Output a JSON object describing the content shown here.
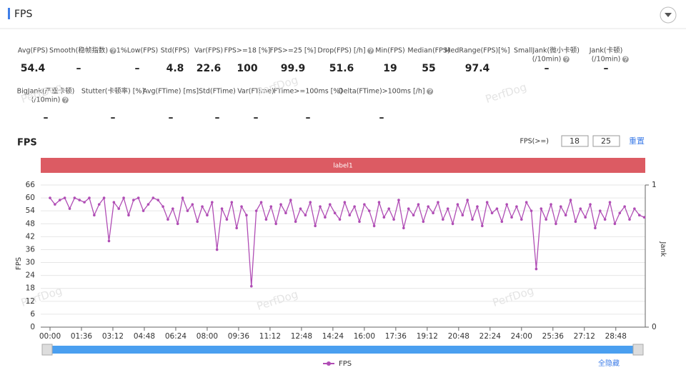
{
  "header": {
    "title": "FPS"
  },
  "metrics": [
    {
      "label": [
        "Avg(FPS)"
      ],
      "value": 54.4,
      "help": false
    },
    {
      "label": [
        "Smooth(稳帧指数)"
      ],
      "value": "–",
      "help": true
    },
    {
      "label": [
        "1%Low(FPS)"
      ],
      "value": "–",
      "help": false
    },
    {
      "label": [
        "Std(FPS)"
      ],
      "value": 4.8,
      "help": false
    },
    {
      "label": [
        "Var(FPS)"
      ],
      "value": 22.6,
      "help": false
    },
    {
      "label": [
        "FPS>=18 [%]"
      ],
      "value": 100,
      "help": false
    },
    {
      "label": [
        "FPS>=25 [%]"
      ],
      "value": 99.9,
      "help": false
    },
    {
      "label": [
        "Drop(FPS) [/h]"
      ],
      "value": 51.6,
      "help": true
    },
    {
      "label": [
        "Min(FPS)"
      ],
      "value": 19,
      "help": false
    },
    {
      "label": [
        "Median(FPS)"
      ],
      "value": 55,
      "help": false
    },
    {
      "label": [
        "MedRange(FPS)[%]"
      ],
      "value": 97.4,
      "help": false
    },
    {
      "label": [
        "SmallJank(微小卡顿)",
        "(/10min)"
      ],
      "value": "–",
      "help": true
    },
    {
      "label": [
        "Jank(卡顿)",
        "(/10min)"
      ],
      "value": "–",
      "help": true
    }
  ],
  "metrics_row2": [
    {
      "label": [
        "BigJank(严重卡顿)",
        "(/10min)"
      ],
      "value": "–",
      "help": true
    },
    {
      "label": [
        "Stutter(卡顿率) [%]"
      ],
      "value": "–",
      "help": false
    },
    {
      "label": [
        "Avg(FTime) [ms]"
      ],
      "value": "–",
      "help": false
    },
    {
      "label": [
        "Std(FTime)"
      ],
      "value": "–",
      "help": false
    },
    {
      "label": [
        "Var(FTime)"
      ],
      "value": "–",
      "help": false
    },
    {
      "label": [
        "FTime>=100ms [%]"
      ],
      "value": "–",
      "help": false
    },
    {
      "label": [
        "Delta(FTime)>100ms [/h]"
      ],
      "value": "–",
      "help": true
    }
  ],
  "watermark": "PerfDog",
  "chart_data": {
    "type": "line",
    "title": "FPS",
    "filter": {
      "label": "FPS(>=)",
      "values": [
        18,
        25
      ],
      "reset": "重置"
    },
    "band_label": "label1",
    "band_color": "#dc5b63",
    "x": [
      0,
      0.25,
      0.5,
      0.75,
      1,
      1.25,
      1.5,
      1.75,
      2,
      2.25,
      2.5,
      2.75,
      3,
      3.25,
      3.5,
      3.75,
      4,
      4.25,
      4.5,
      4.75,
      5,
      5.25,
      5.5,
      5.75,
      6,
      6.25,
      6.5,
      6.75,
      7,
      7.25,
      7.5,
      7.75,
      8,
      8.25,
      8.5,
      8.75,
      9,
      9.25,
      9.5,
      9.75,
      10,
      10.25,
      10.5,
      10.75,
      11,
      11.25,
      11.5,
      11.75,
      12,
      12.25,
      12.5,
      12.75,
      13,
      13.25,
      13.5,
      13.75,
      14,
      14.25,
      14.5,
      14.75,
      15,
      15.25,
      15.5,
      15.75,
      16,
      16.25,
      16.5,
      16.75,
      17,
      17.25,
      17.5,
      17.75,
      18,
      18.25,
      18.5,
      18.75,
      19,
      19.25,
      19.5,
      19.75,
      20,
      20.25,
      20.5,
      20.75,
      21,
      21.25,
      21.5,
      21.75,
      22,
      22.25,
      22.5,
      22.75,
      23,
      23.25,
      23.5,
      23.75,
      24,
      24.25,
      24.5,
      24.75,
      25,
      25.25,
      25.5,
      25.75,
      26,
      26.25,
      26.5,
      26.75,
      27,
      27.25,
      27.5,
      27.75,
      28,
      28.25,
      28.5,
      28.75,
      29,
      29.25,
      29.5,
      29.75,
      30,
      30.25
    ],
    "series": [
      {
        "name": "FPS",
        "color": "#b04db5",
        "values": [
          60,
          57,
          59,
          60,
          55,
          60,
          59,
          58,
          60,
          52,
          57,
          60,
          40,
          58,
          55,
          60,
          52,
          59,
          60,
          54,
          57,
          60,
          59,
          56,
          50,
          55,
          48,
          60,
          54,
          57,
          49,
          56,
          52,
          58,
          36,
          55,
          50,
          58,
          46,
          56,
          52,
          19,
          54,
          58,
          50,
          56,
          48,
          57,
          53,
          59,
          49,
          55,
          52,
          58,
          47,
          56,
          51,
          57,
          53,
          50,
          58,
          52,
          56,
          49,
          57,
          54,
          47,
          58,
          51,
          55,
          50,
          59,
          46,
          55,
          52,
          57,
          49,
          56,
          53,
          58,
          50,
          55,
          48,
          57,
          52,
          59,
          50,
          56,
          47,
          58,
          53,
          55,
          49,
          57,
          51,
          56,
          50,
          58,
          54,
          27,
          55,
          50,
          57,
          48,
          56,
          52,
          59,
          49,
          55,
          51,
          57,
          46,
          54,
          50,
          58,
          48,
          53,
          56,
          50,
          55,
          52,
          51
        ]
      }
    ],
    "xlim": [
      0,
      30.3
    ],
    "xticks": [
      {
        "value": 0,
        "label": "00:00"
      },
      {
        "value": 1.6,
        "label": "01:36"
      },
      {
        "value": 3.2,
        "label": "03:12"
      },
      {
        "value": 4.8,
        "label": "04:48"
      },
      {
        "value": 6.4,
        "label": "06:24"
      },
      {
        "value": 8,
        "label": "08:00"
      },
      {
        "value": 9.6,
        "label": "09:36"
      },
      {
        "value": 11.2,
        "label": "11:12"
      },
      {
        "value": 12.8,
        "label": "12:48"
      },
      {
        "value": 14.4,
        "label": "14:24"
      },
      {
        "value": 16,
        "label": "16:00"
      },
      {
        "value": 17.6,
        "label": "17:36"
      },
      {
        "value": 19.2,
        "label": "19:12"
      },
      {
        "value": 20.8,
        "label": "20:48"
      },
      {
        "value": 22.4,
        "label": "22:24"
      },
      {
        "value": 24,
        "label": "24:00"
      },
      {
        "value": 25.6,
        "label": "25:36"
      },
      {
        "value": 27.2,
        "label": "27:12"
      },
      {
        "value": 28.8,
        "label": "28:48"
      }
    ],
    "ylim": [
      0,
      66
    ],
    "yticks": [
      0,
      6,
      12,
      18,
      24,
      30,
      36,
      42,
      48,
      54,
      60,
      66
    ],
    "y2lim": [
      0,
      1
    ],
    "y2ticks": [
      0,
      1
    ],
    "ylabel": "FPS",
    "y2label": "Jank",
    "grid": true,
    "hide_all": "全隐藏"
  }
}
